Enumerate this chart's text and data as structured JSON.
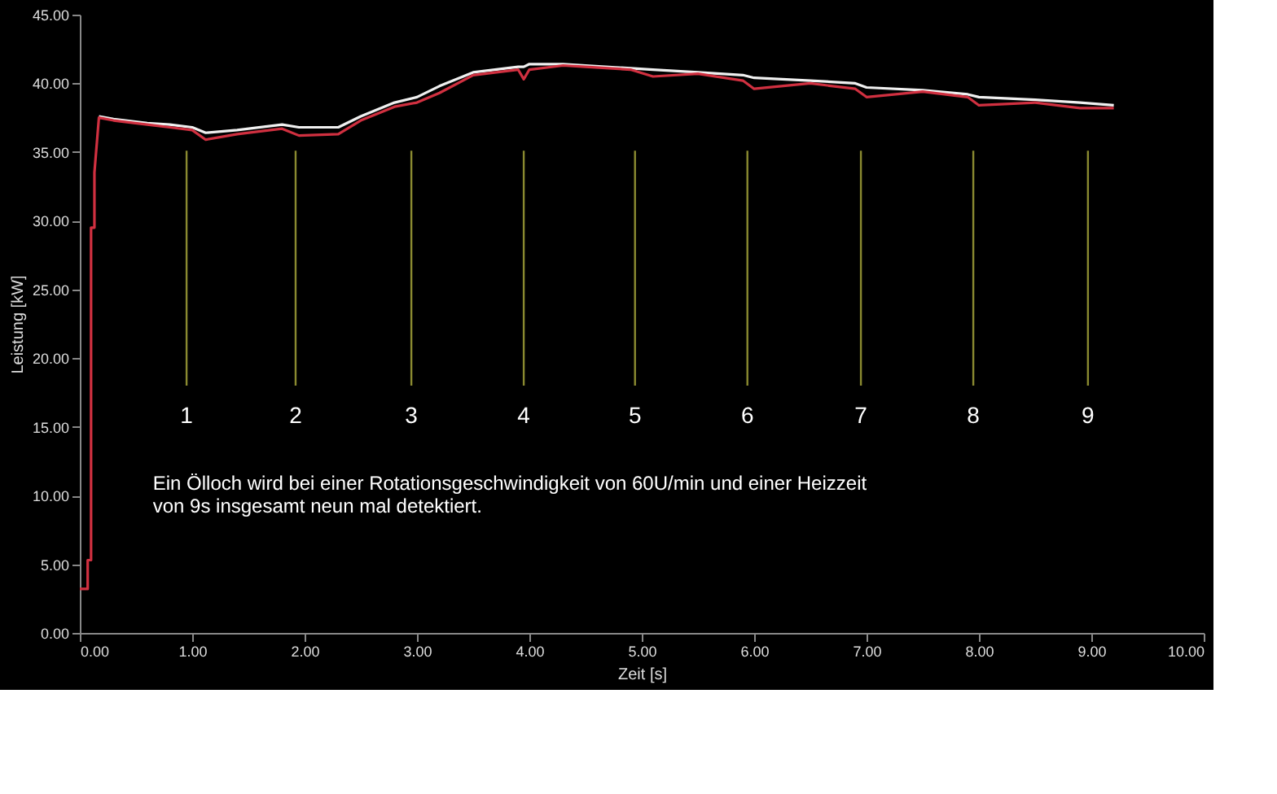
{
  "chart_data": {
    "type": "line",
    "xlabel": "Zeit [s]",
    "ylabel": "Leistung [kW]",
    "xlim": [
      0,
      10
    ],
    "ylim": [
      0,
      45
    ],
    "xticks": [
      {
        "value": 0,
        "label": "0.00"
      },
      {
        "value": 1,
        "label": "1.00"
      },
      {
        "value": 2,
        "label": "2.00"
      },
      {
        "value": 3,
        "label": "3.00"
      },
      {
        "value": 4,
        "label": "4.00"
      },
      {
        "value": 5,
        "label": "5.00"
      },
      {
        "value": 6,
        "label": "6.00"
      },
      {
        "value": 7,
        "label": "7.00"
      },
      {
        "value": 8,
        "label": "8.00"
      },
      {
        "value": 9,
        "label": "9.00"
      },
      {
        "value": 10,
        "label": "10.00"
      }
    ],
    "yticks": [
      {
        "value": 0,
        "label": "0.00"
      },
      {
        "value": 5,
        "label": "5.00"
      },
      {
        "value": 10,
        "label": "10.00"
      },
      {
        "value": 15,
        "label": "15.00"
      },
      {
        "value": 20,
        "label": "20.00"
      },
      {
        "value": 25,
        "label": "25.00"
      },
      {
        "value": 30,
        "label": "30.00"
      },
      {
        "value": 35,
        "label": "35.00"
      },
      {
        "value": 40,
        "label": "40.00"
      },
      {
        "value": 45,
        "label": "45.00"
      }
    ],
    "x": [
      0,
      0.07,
      0.07,
      0.1,
      0.1,
      0.13,
      0.13,
      0.17,
      0.3,
      0.6,
      0.8,
      1.0,
      1.12,
      1.4,
      1.8,
      1.95,
      2.3,
      2.5,
      2.8,
      3.0,
      3.2,
      3.5,
      3.9,
      3.95,
      4.0,
      4.3,
      4.5,
      4.9,
      5.1,
      5.5,
      5.9,
      6.0,
      6.5,
      6.9,
      7.0,
      7.5,
      7.9,
      8.0,
      8.5,
      8.9,
      9.2
    ],
    "series": [
      {
        "color": "#f0f0f0",
        "values": [
          null,
          null,
          null,
          null,
          null,
          null,
          null,
          37.6,
          37.4,
          37.1,
          37.0,
          36.8,
          36.4,
          36.6,
          37.0,
          36.8,
          36.8,
          37.6,
          38.6,
          39.0,
          39.8,
          40.8,
          41.2,
          41.2,
          41.4,
          41.4,
          41.3,
          41.1,
          41.0,
          40.8,
          40.6,
          40.4,
          40.2,
          40.0,
          39.7,
          39.5,
          39.2,
          39.0,
          38.8,
          38.6,
          38.4
        ]
      },
      {
        "color": "#d03040",
        "values": [
          3.2,
          3.2,
          5.3,
          5.3,
          29.5,
          29.5,
          33.5,
          37.5,
          37.3,
          37.0,
          36.8,
          36.6,
          35.9,
          36.3,
          36.7,
          36.2,
          36.3,
          37.3,
          38.3,
          38.6,
          39.3,
          40.6,
          41.0,
          40.3,
          41.0,
          41.3,
          41.2,
          41.0,
          40.5,
          40.7,
          40.2,
          39.6,
          40.0,
          39.6,
          39.0,
          39.4,
          39.0,
          38.4,
          38.6,
          38.2,
          38.2
        ]
      }
    ],
    "ref_lines": [
      {
        "axis": "x",
        "value": 0.95,
        "label": "1",
        "color": "#8a8a30"
      },
      {
        "axis": "x",
        "value": 1.92,
        "label": "2",
        "color": "#8a8a30"
      },
      {
        "axis": "x",
        "value": 2.95,
        "label": "3",
        "color": "#8a8a30"
      },
      {
        "axis": "x",
        "value": 3.95,
        "label": "4",
        "color": "#8a8a30"
      },
      {
        "axis": "x",
        "value": 4.94,
        "label": "5",
        "color": "#8a8a30"
      },
      {
        "axis": "x",
        "value": 5.94,
        "label": "6",
        "color": "#8a8a30"
      },
      {
        "axis": "x",
        "value": 6.95,
        "label": "7",
        "color": "#8a8a30"
      },
      {
        "axis": "x",
        "value": 7.95,
        "label": "8",
        "color": "#8a8a30"
      },
      {
        "axis": "x",
        "value": 8.97,
        "label": "9",
        "color": "#8a8a30"
      }
    ],
    "annotations": [
      "Ein Ölloch wird bei einer Rotationsgeschwindigkeit  von 60U/min und einer Heizzeit\nvon 9s insgesamt neun mal detektiert."
    ],
    "grid": false,
    "legend": false,
    "marker": "none",
    "line_style": "solid"
  }
}
